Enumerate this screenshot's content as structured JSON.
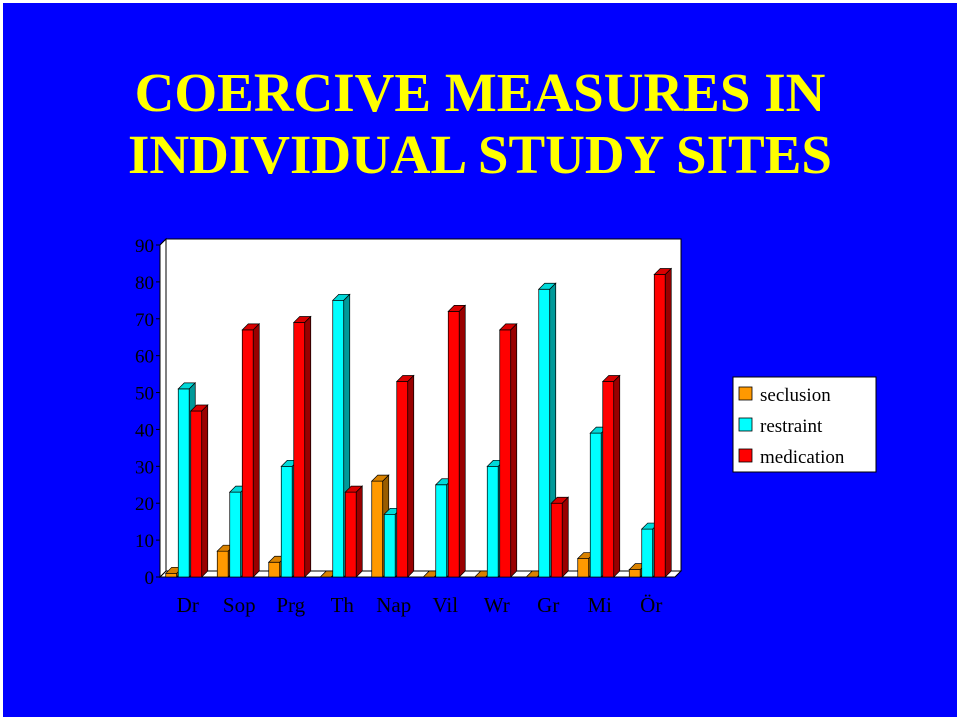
{
  "slide": {
    "title_line1": "COERCIVE MEASURES IN",
    "title_line2": "INDIVIDUAL STUDY SITES",
    "background_color": "#0000ff",
    "title_color": "#ffff00"
  },
  "chart_data": {
    "type": "bar",
    "categories": [
      "Dr",
      "Sop",
      "Prg",
      "Th",
      "Nap",
      "Vil",
      "Wr",
      "Gr",
      "Mi",
      "Ör"
    ],
    "yticks": [
      "0",
      "10",
      "20",
      "30",
      "40",
      "50",
      "60",
      "70",
      "80",
      "90"
    ],
    "ylim": [
      0,
      90
    ],
    "legend_position": "right",
    "series": [
      {
        "name": "seclusion",
        "color": "#ff9900",
        "values": [
          1,
          7,
          4,
          0,
          26,
          0,
          0,
          0,
          5,
          2
        ]
      },
      {
        "name": "restraint",
        "color": "#00ffff",
        "values": [
          51,
          23,
          30,
          75,
          17,
          25,
          30,
          78,
          39,
          13
        ]
      },
      {
        "name": "medication",
        "color": "#ff0000",
        "values": [
          45,
          67,
          69,
          23,
          53,
          72,
          67,
          20,
          53,
          82
        ]
      }
    ]
  }
}
